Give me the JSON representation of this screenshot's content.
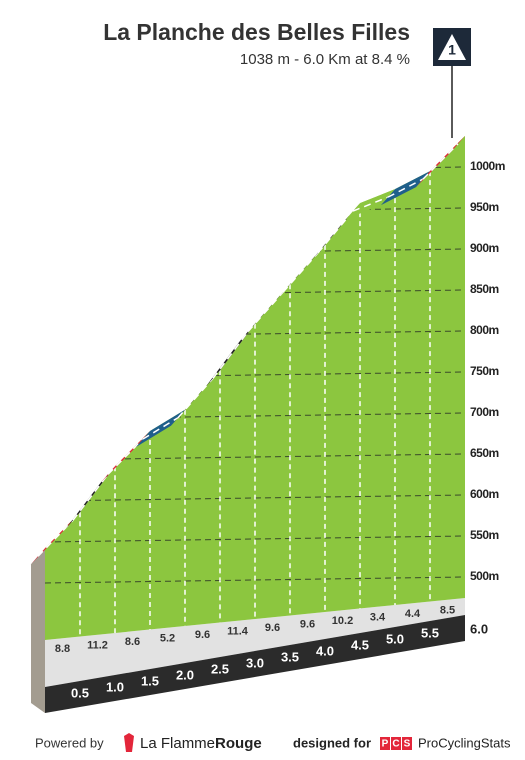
{
  "chart_data": {
    "type": "climb-profile",
    "title": "La Planche des Belles Filles",
    "subtitle": "1038 m - 6.0 Km at 8.4 %",
    "badge": "1",
    "x": [
      0,
      0.5,
      1,
      1.5,
      2,
      2.5,
      3,
      3.5,
      4,
      4.5,
      5,
      5.5,
      6
    ],
    "elevations": [
      535,
      579,
      635,
      678,
      704,
      752,
      809,
      857,
      905,
      956,
      973,
      995,
      1038
    ],
    "gradients": [
      8.8,
      11.2,
      8.6,
      5.2,
      9.6,
      11.4,
      9.6,
      9.6,
      10.2,
      3.4,
      4.4,
      8.5
    ],
    "segment_colors": [
      "#e3263a",
      "#222222",
      "#e3263a",
      "#1f5f8b",
      "#222222",
      "#222222",
      "#222222",
      "#222222",
      "#222222",
      "#8cc63f",
      "#1f5f8b",
      "#e3263a"
    ],
    "color": "#8cc63f",
    "xlim": [
      0,
      6
    ],
    "xticks": [
      0.5,
      {
        "value": 1,
        "label": "1.0"
      },
      1.5,
      {
        "value": 2,
        "label": "2.0"
      },
      2.5,
      {
        "value": 3,
        "label": "3.0"
      },
      3.5,
      {
        "value": 4,
        "label": "4.0"
      },
      4.5,
      {
        "value": 5,
        "label": "5.0"
      },
      5.5,
      {
        "value": 6,
        "label": "6.0"
      }
    ],
    "ylim": [
      500,
      1000
    ],
    "yticks": [
      {
        "value": 500,
        "label": "500m"
      },
      {
        "value": 550,
        "label": "550m"
      },
      {
        "value": 600,
        "label": "600m"
      },
      {
        "value": 650,
        "label": "650m"
      },
      {
        "value": 700,
        "label": "700m"
      },
      {
        "value": 750,
        "label": "750m"
      },
      {
        "value": 800,
        "label": "800m"
      },
      {
        "value": 850,
        "label": "850m"
      },
      {
        "value": 900,
        "label": "900m"
      },
      {
        "value": 950,
        "label": "950m"
      },
      {
        "value": 1000,
        "label": "1000m"
      }
    ],
    "grid": true
  },
  "footer": {
    "powered": "Powered by",
    "brand_a": "La Flamme",
    "brand_b": "Rouge",
    "designed": "designed for",
    "pcs": [
      "P",
      "C",
      "S"
    ],
    "site": "ProCyclingStats"
  }
}
